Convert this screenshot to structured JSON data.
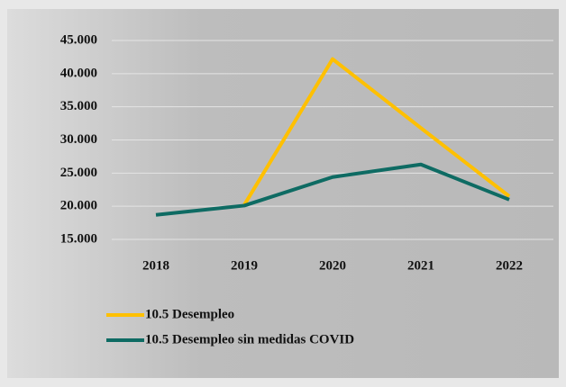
{
  "chart_data": {
    "type": "line",
    "categories": [
      "2018",
      "2019",
      "2020",
      "2021",
      "2022"
    ],
    "series": [
      {
        "name": "10.5 Desempleo",
        "color": "#ffc000",
        "values": [
          null,
          20200,
          42200,
          31800,
          21500
        ]
      },
      {
        "name": "10.5 Desempleo sin medidas COVID",
        "color": "#0e6b63",
        "values": [
          18700,
          20100,
          24400,
          26300,
          21000
        ]
      }
    ],
    "ylim": [
      15000,
      45000
    ],
    "yticks": [
      {
        "value": 15000,
        "label": "15.000"
      },
      {
        "value": 20000,
        "label": "20.000"
      },
      {
        "value": 25000,
        "label": "25.000"
      },
      {
        "value": 30000,
        "label": "30.000"
      },
      {
        "value": 35000,
        "label": "35.000"
      },
      {
        "value": 40000,
        "label": "40.000"
      },
      {
        "value": 45000,
        "label": "45.000"
      }
    ],
    "grid": true,
    "legend": "bottom"
  }
}
